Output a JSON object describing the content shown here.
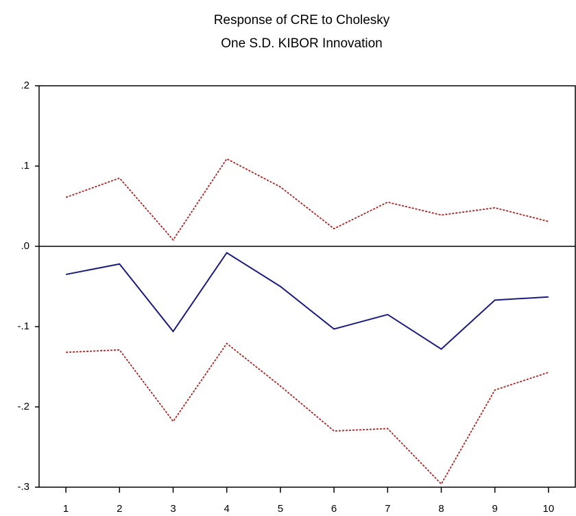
{
  "chart_data": {
    "type": "line",
    "title": "Response of CRE to Cholesky",
    "subtitle": "One S.D. KIBOR Innovation",
    "x": [
      1,
      2,
      3,
      4,
      5,
      6,
      7,
      8,
      9,
      10
    ],
    "xlim": [
      0.5,
      10.5
    ],
    "xticks": [
      1,
      2,
      3,
      4,
      5,
      6,
      7,
      8,
      9,
      10
    ],
    "ylim": [
      -0.3,
      0.2
    ],
    "yticks": [
      {
        "value": 0.2,
        "label": ".2"
      },
      {
        "value": 0.1,
        "label": ".1"
      },
      {
        "value": 0,
        "label": ".0"
      },
      {
        "value": -0.1,
        "label": "-.1"
      },
      {
        "value": -0.2,
        "label": "-.2"
      },
      {
        "value": -0.3,
        "label": "-.3"
      }
    ],
    "zero_line": true,
    "grid": false,
    "series": [
      {
        "color": "#1a1a80",
        "dash": "solid",
        "values": [
          -0.035,
          -0.022,
          -0.106,
          -0.008,
          -0.05,
          -0.103,
          -0.085,
          -0.128,
          -0.067,
          -0.063
        ]
      },
      {
        "color": "#b02020",
        "dash": "dotted",
        "values": [
          0.061,
          0.085,
          0.008,
          0.109,
          0.074,
          0.022,
          0.055,
          0.039,
          0.048,
          0.031
        ]
      },
      {
        "color": "#b02020",
        "dash": "dotted",
        "values": [
          -0.132,
          -0.129,
          -0.218,
          -0.121,
          -0.174,
          -0.23,
          -0.227,
          -0.296,
          -0.179,
          -0.157
        ]
      }
    ]
  }
}
